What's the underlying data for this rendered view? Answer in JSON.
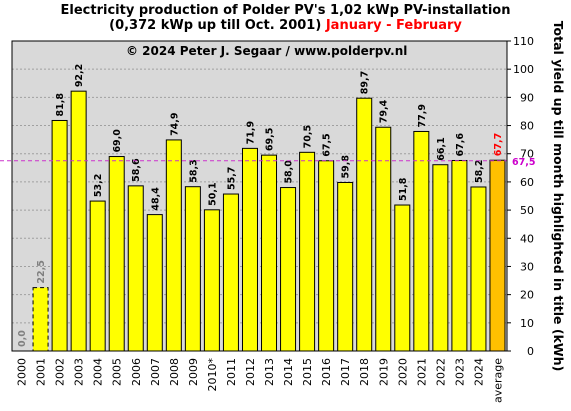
{
  "title": {
    "line1": "Electricity production  of Polder  PV's  1,02 kWp PV-installation",
    "line2_black": "(0,372 kWp up till Oct. 2001)",
    "line2_red": "January - February"
  },
  "copyright": "© 2024 Peter J. Segaar / www.polderpv.nl",
  "colors": {
    "plot_bg": "#d9d9d9",
    "bar_fill": "#ffff00",
    "average_fill": "#ffc000",
    "average_label": "#ff0000",
    "reference_line": "#cc33cc",
    "reference_label": "#cc00cc",
    "value_label": "#000000",
    "muted_label": "#808080",
    "title_red": "#ff0000",
    "grid": "#a0a0a0"
  },
  "chart_data": {
    "type": "bar",
    "categories": [
      "2000",
      "2001",
      "2002",
      "2003",
      "2004",
      "2005",
      "2006",
      "2007",
      "2008",
      "2009",
      "2010*",
      "2011",
      "2012",
      "2013",
      "2014",
      "2015",
      "2016",
      "2017",
      "2018",
      "2019",
      "2020",
      "2021",
      "2022",
      "2023",
      "2024",
      "average"
    ],
    "values": [
      0.0,
      22.5,
      81.8,
      92.2,
      53.2,
      69.0,
      58.6,
      48.4,
      74.9,
      58.3,
      50.1,
      55.7,
      71.9,
      69.5,
      58.0,
      70.5,
      67.5,
      59.8,
      89.7,
      79.4,
      51.8,
      77.9,
      66.1,
      67.6,
      58.2,
      67.7
    ],
    "value_labels": [
      "0,0",
      "22,5",
      "81,8",
      "92,2",
      "53,2",
      "69,0",
      "58,6",
      "48,4",
      "74,9",
      "58,3",
      "50,1",
      "55,7",
      "71,9",
      "69,5",
      "58,0",
      "70,5",
      "67,5",
      "59,8",
      "89,7",
      "79,4",
      "51,8",
      "77,9",
      "66,1",
      "67,6",
      "58,2",
      "67,7"
    ],
    "dashed_bars": [
      "2001"
    ],
    "muted_labels": [
      "2000",
      "2001"
    ],
    "highlight_bar": "average",
    "reference_line": {
      "value": 67.5,
      "label": "67,5"
    },
    "ylabel": "Total yield up till month highlighted in title (kWh)",
    "ylim": [
      0,
      110
    ],
    "yticks": [
      0,
      10,
      20,
      30,
      40,
      50,
      60,
      70,
      80,
      90,
      100,
      110
    ],
    "y_axis_position": "right",
    "grid": true
  }
}
